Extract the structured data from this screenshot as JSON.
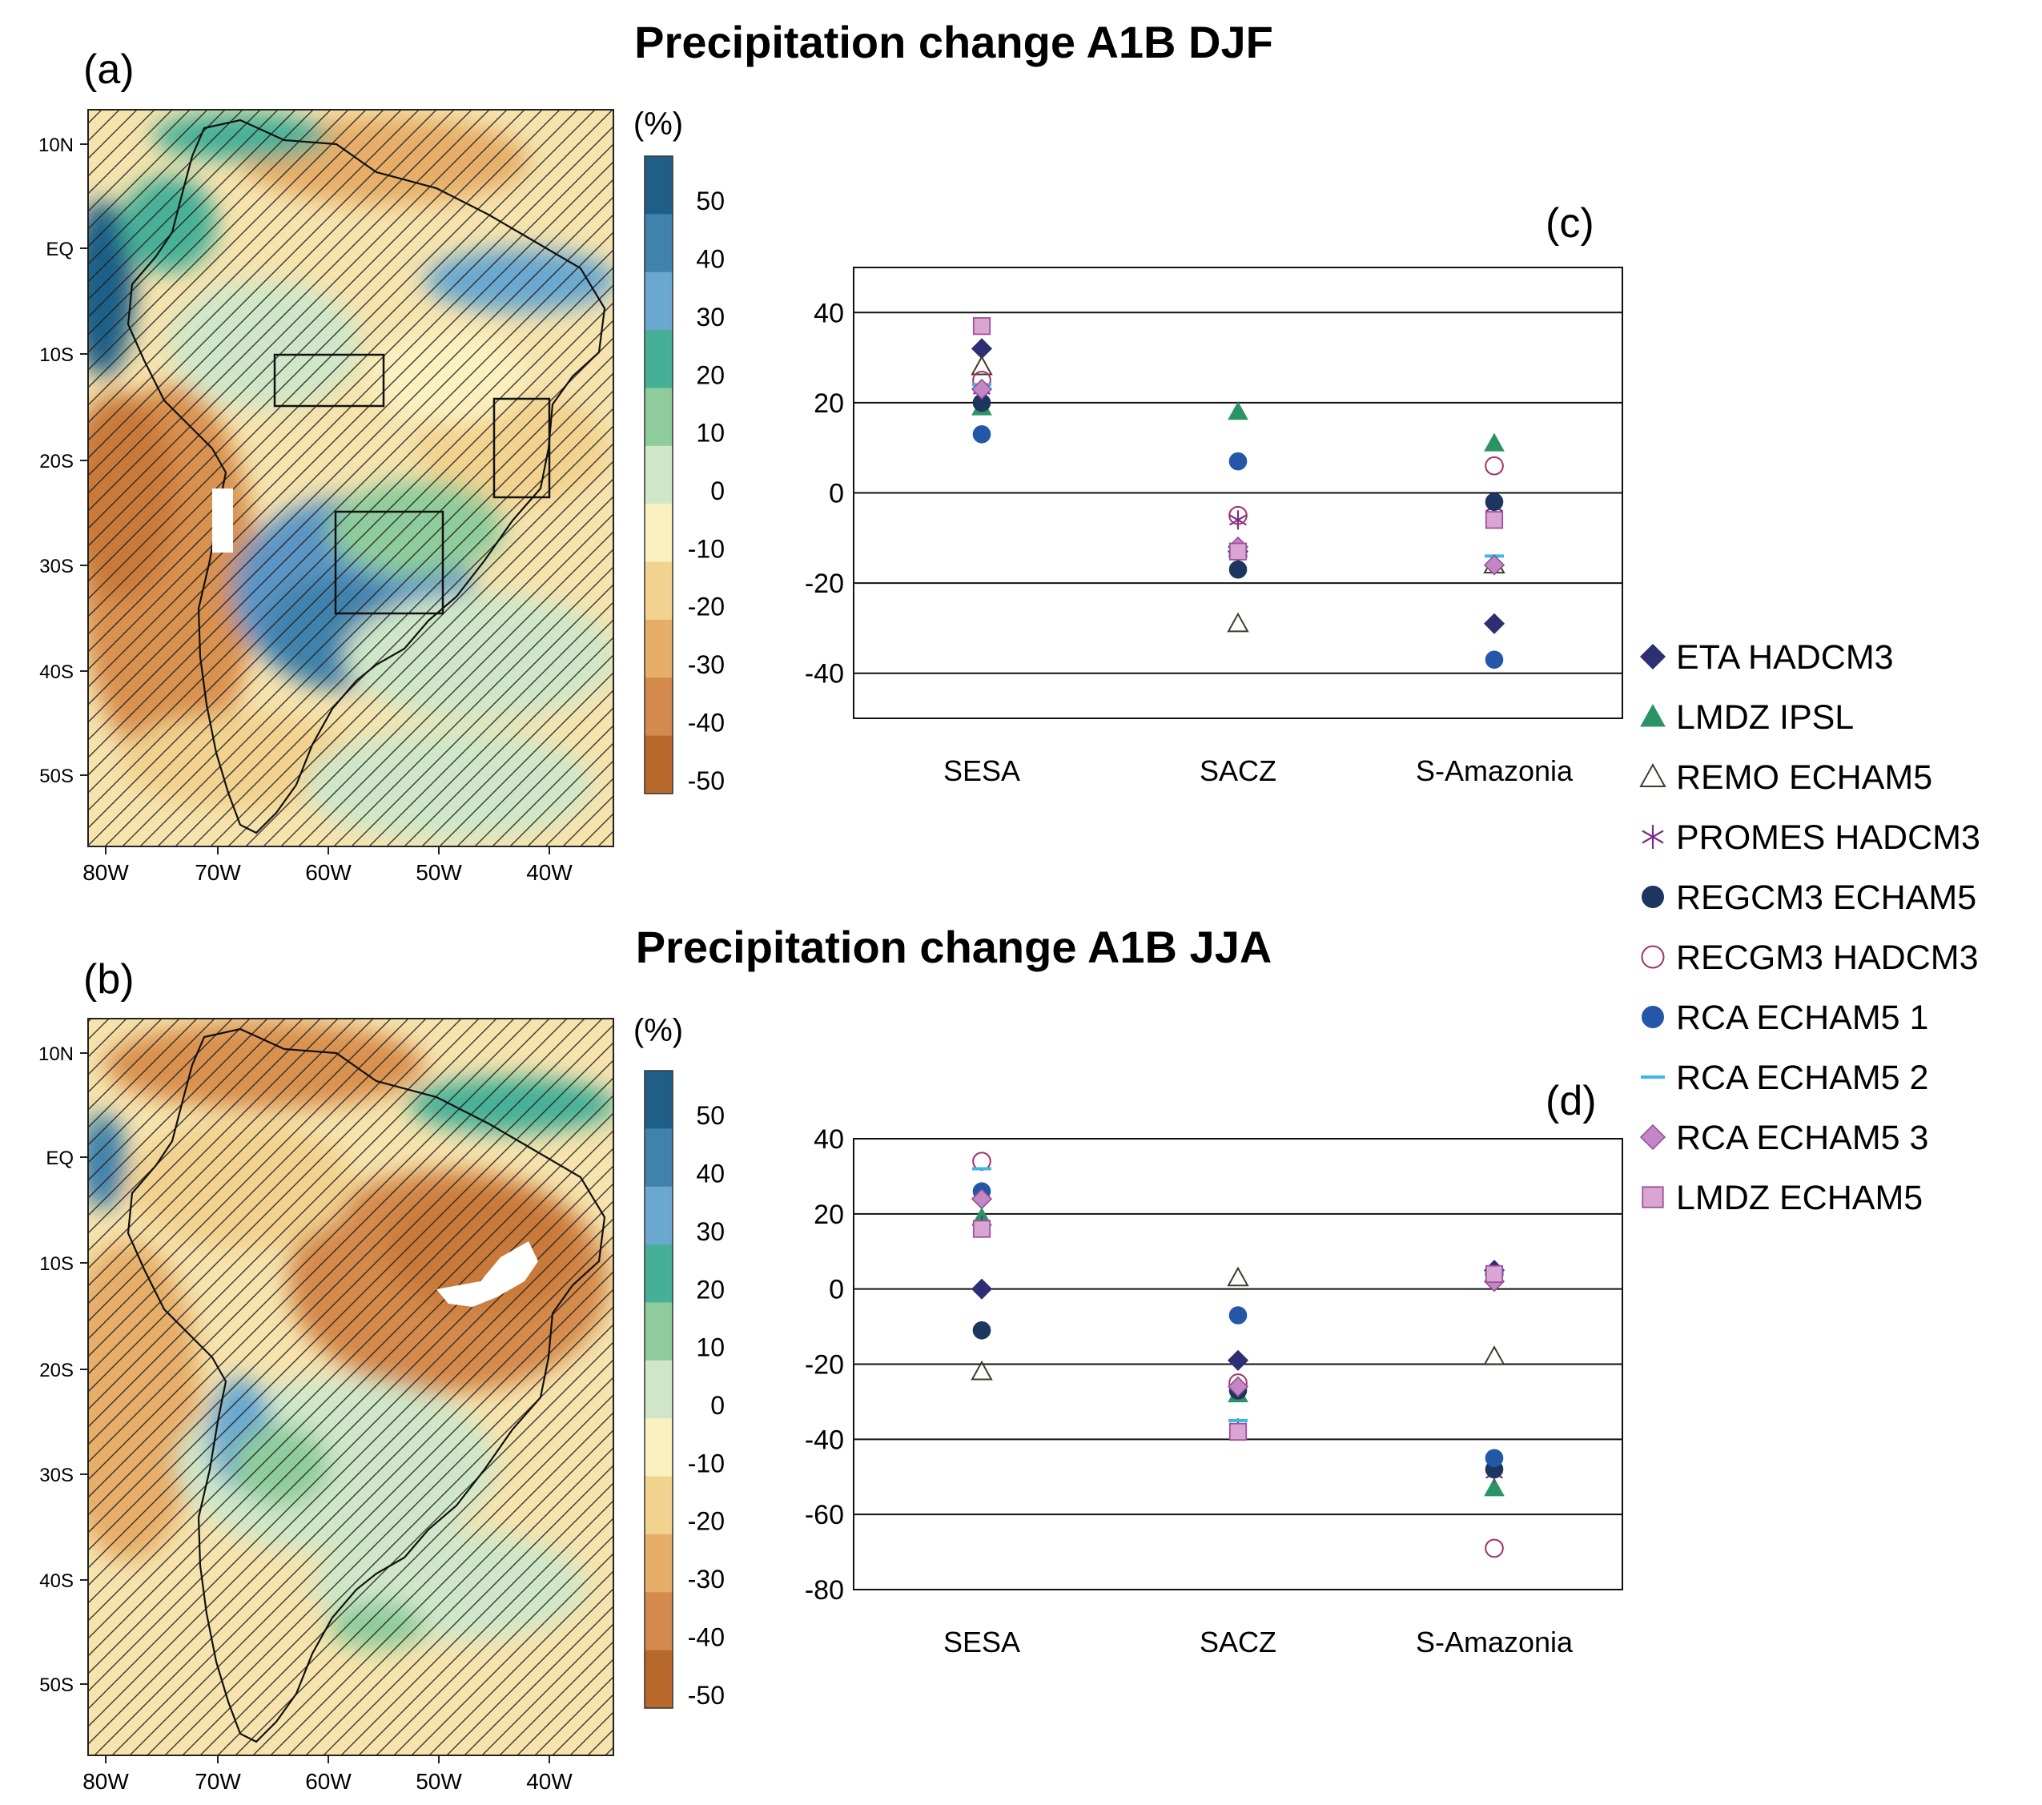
{
  "titles": {
    "top": "Precipitation change A1B DJF",
    "bottom": "Precipitation change A1B JJA"
  },
  "panel_labels": {
    "a": "(a)",
    "b": "(b)",
    "c": "(c)",
    "d": "(d)"
  },
  "maps": {
    "lat_labels": [
      "10N",
      "EQ",
      "10S",
      "20S",
      "30S",
      "40S",
      "50S"
    ],
    "lon_labels": [
      "80W",
      "70W",
      "60W",
      "50W",
      "40W"
    ],
    "colorbar": {
      "unit": "(%)",
      "tick_labels": [
        "50",
        "40",
        "30",
        "20",
        "10",
        "0",
        "-10",
        "-20",
        "-30",
        "-40",
        "-50"
      ],
      "colors": [
        "#1f5f87",
        "#3f82ab",
        "#6aa8cf",
        "#46b097",
        "#8fcc9b",
        "#cfe7c8",
        "#fbf0c0",
        "#f2d28f",
        "#e6ae69",
        "#d48a4c",
        "#b9682c"
      ]
    }
  },
  "legend": [
    {
      "label": "ETA HADCM3",
      "marker": "diamond",
      "color": "#2e2e73"
    },
    {
      "label": "LMDZ IPSL",
      "marker": "triangle",
      "color": "#2a9465"
    },
    {
      "label": "REMO ECHAM5",
      "marker": "triangle-open",
      "color": "#3d3d2a"
    },
    {
      "label": "PROMES HADCM3",
      "marker": "star",
      "color": "#7a2b8a"
    },
    {
      "label": "REGCM3 ECHAM5",
      "marker": "circle",
      "color": "#1c3660"
    },
    {
      "label": "RECGM3 HADCM3",
      "marker": "circle-open",
      "color": "#a0306a"
    },
    {
      "label": "RCA ECHAM5 1",
      "marker": "circle",
      "color": "#2457a8"
    },
    {
      "label": "RCA ECHAM5 2",
      "marker": "dash",
      "color": "#3cb8e8"
    },
    {
      "label": "RCA ECHAM5 3",
      "marker": "diamond",
      "color": "#c486c4"
    },
    {
      "label": "LMDZ ECHAM5",
      "marker": "square",
      "color": "#d9a6d4"
    }
  ],
  "chart_data": [
    {
      "type": "scatter",
      "panel": "(c)",
      "categories": [
        "SESA",
        "SACZ",
        "S-Amazonia"
      ],
      "ylim": [
        -50,
        50
      ],
      "yticks": [
        40,
        20,
        0,
        -20,
        -40
      ],
      "grid": "horizontal",
      "series": [
        {
          "name": "ETA HADCM3",
          "values": [
            32,
            -13,
            -29
          ]
        },
        {
          "name": "LMDZ IPSL",
          "values": [
            19,
            18,
            11
          ]
        },
        {
          "name": "REMO ECHAM5",
          "values": [
            28,
            -29,
            -16
          ]
        },
        {
          "name": "PROMES HADCM3",
          "values": [
            23,
            -6,
            -3
          ]
        },
        {
          "name": "REGCM3 ECHAM5",
          "values": [
            20,
            -17,
            -2
          ]
        },
        {
          "name": "RECGM3 HADCM3",
          "values": [
            25,
            -5,
            6
          ]
        },
        {
          "name": "RCA ECHAM5 1",
          "values": [
            13,
            7,
            -37
          ]
        },
        {
          "name": "RCA ECHAM5 2",
          "values": [
            24,
            -14,
            -14
          ]
        },
        {
          "name": "RCA ECHAM5 3",
          "values": [
            23,
            -12,
            -16
          ]
        },
        {
          "name": "LMDZ ECHAM5",
          "values": [
            37,
            -13,
            -6
          ]
        }
      ]
    },
    {
      "type": "scatter",
      "panel": "(d)",
      "categories": [
        "SESA",
        "SACZ",
        "S-Amazonia"
      ],
      "ylim": [
        -80,
        40
      ],
      "yticks": [
        40,
        20,
        0,
        -20,
        -40,
        -60,
        -80
      ],
      "grid": "horizontal",
      "series": [
        {
          "name": "ETA HADCM3",
          "values": [
            0,
            -19,
            5
          ]
        },
        {
          "name": "LMDZ IPSL",
          "values": [
            19,
            -28,
            -53
          ]
        },
        {
          "name": "REMO ECHAM5",
          "values": [
            -22,
            3,
            -18
          ]
        },
        {
          "name": "PROMES HADCM3",
          "values": [
            17,
            -37,
            -49
          ]
        },
        {
          "name": "REGCM3 ECHAM5",
          "values": [
            -11,
            -27,
            -48
          ]
        },
        {
          "name": "RECGM3 HADCM3",
          "values": [
            34,
            -25,
            -69
          ]
        },
        {
          "name": "RCA ECHAM5 1",
          "values": [
            26,
            -7,
            -45
          ]
        },
        {
          "name": "RCA ECHAM5 2",
          "values": [
            32,
            -35,
            4
          ]
        },
        {
          "name": "RCA ECHAM5 3",
          "values": [
            24,
            -26,
            2
          ]
        },
        {
          "name": "LMDZ ECHAM5",
          "values": [
            16,
            -38,
            4
          ]
        }
      ]
    }
  ]
}
